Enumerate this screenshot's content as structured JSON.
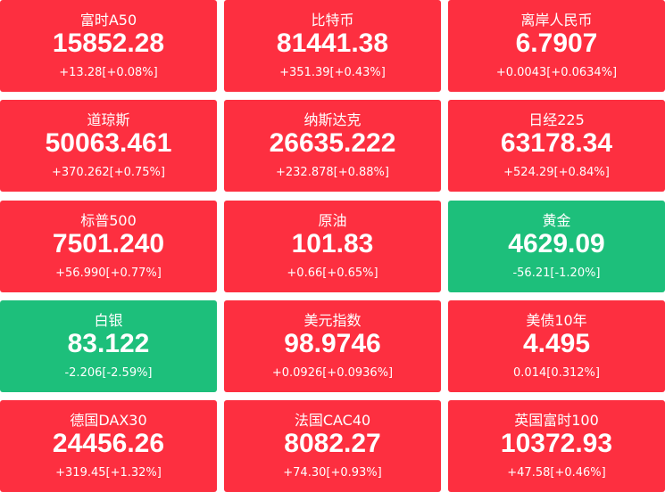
{
  "tiles": [
    {
      "name": "富时A50",
      "value": "15852.28",
      "change": "+13.28[+0.08%]",
      "color": "#fd2f40"
    },
    {
      "name": "比特币",
      "value": "81441.38",
      "change": "+351.39[+0.43%]",
      "color": "#fd2f40"
    },
    {
      "name": "离岸人民币",
      "value": "6.7907",
      "change": "+0.0043[+0.0634%]",
      "color": "#fd2f40"
    },
    {
      "name": "道琼斯",
      "value": "50063.461",
      "change": "+370.262[+0.75%]",
      "color": "#fd2f40"
    },
    {
      "name": "纳斯达克",
      "value": "26635.222",
      "change": "+232.878[+0.88%]",
      "color": "#fd2f40"
    },
    {
      "name": "日经225",
      "value": "63178.34",
      "change": "+524.29[+0.84%]",
      "color": "#fd2f40"
    },
    {
      "name": "标普500",
      "value": "7501.240",
      "change": "+56.990[+0.77%]",
      "color": "#fd2f40"
    },
    {
      "name": "原油",
      "value": "101.83",
      "change": "+0.66[+0.65%]",
      "color": "#fd2f40"
    },
    {
      "name": "黄金",
      "value": "4629.09",
      "change": "-56.21[-1.20%]",
      "color": "#1dbf7b"
    },
    {
      "name": "白银",
      "value": "83.122",
      "change": "-2.206[-2.59%]",
      "color": "#1dbf7b"
    },
    {
      "name": "美元指数",
      "value": "98.9746",
      "change": "+0.0926[+0.0936%]",
      "color": "#fd2f40"
    },
    {
      "name": "美债10年",
      "value": "4.495",
      "change": "0.014[0.312%]",
      "color": "#fd2f40"
    },
    {
      "name": "德国DAX30",
      "value": "24456.26",
      "change": "+319.45[+1.32%]",
      "color": "#fd2f40"
    },
    {
      "name": "法国CAC40",
      "value": "8082.27",
      "change": "+74.30[+0.93%]",
      "color": "#fd2f40"
    },
    {
      "name": "英国富时100",
      "value": "10372.93",
      "change": "+47.58[+0.46%]",
      "color": "#fd2f40"
    }
  ]
}
